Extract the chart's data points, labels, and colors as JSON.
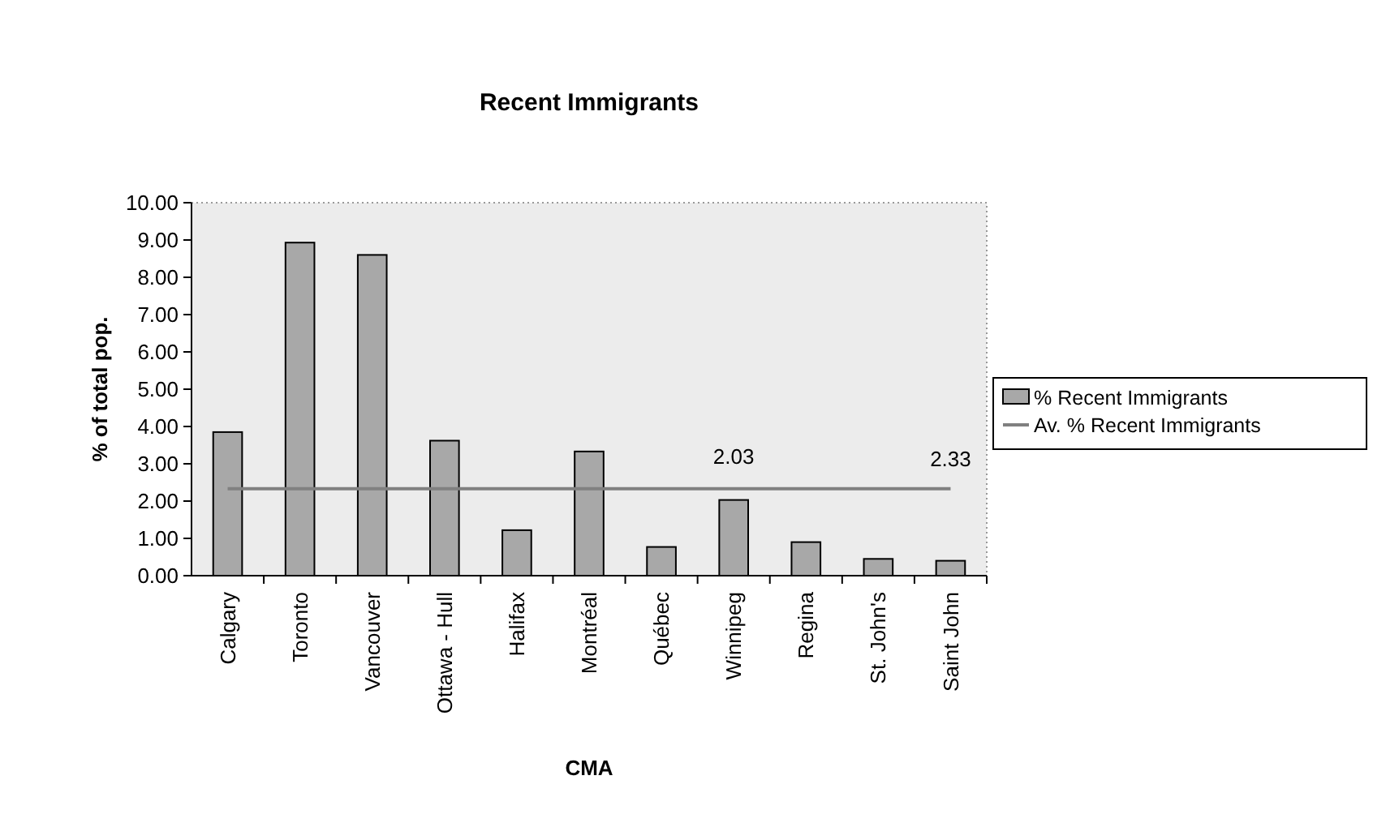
{
  "chart_data": {
    "type": "bar",
    "title": "Recent Immigrants",
    "xlabel": "CMA",
    "ylabel": "% of total pop.",
    "categories": [
      "Calgary",
      "Toronto",
      "Vancouver",
      "Ottawa - Hull",
      "Halifax",
      "Montréal",
      "Québec",
      "Winnipeg",
      "Regina",
      "St. John's",
      "Saint John"
    ],
    "series": [
      {
        "name": "% Recent Immigrants",
        "color": "#a8a8a8",
        "values": [
          3.85,
          8.93,
          8.6,
          3.62,
          1.22,
          3.33,
          0.77,
          2.03,
          0.9,
          0.45,
          0.4
        ],
        "value_labels": [
          null,
          null,
          null,
          null,
          null,
          null,
          null,
          "2.03",
          null,
          null,
          null
        ]
      },
      {
        "name": "Av. % Recent Immigrants",
        "type": "line",
        "color": "#808080",
        "values": [
          2.33,
          2.33,
          2.33,
          2.33,
          2.33,
          2.33,
          2.33,
          2.33,
          2.33,
          2.33,
          2.33
        ],
        "value_labels": [
          null,
          null,
          null,
          null,
          null,
          null,
          null,
          null,
          null,
          null,
          "2.33"
        ]
      }
    ],
    "ylim": [
      0,
      10
    ],
    "yticks": [
      {
        "value": 0,
        "label": "0.00"
      },
      {
        "value": 1,
        "label": "1.00"
      },
      {
        "value": 2,
        "label": "2.00"
      },
      {
        "value": 3,
        "label": "3.00"
      },
      {
        "value": 4,
        "label": "4.00"
      },
      {
        "value": 5,
        "label": "5.00"
      },
      {
        "value": 6,
        "label": "6.00"
      },
      {
        "value": 7,
        "label": "7.00"
      },
      {
        "value": 8,
        "label": "8.00"
      },
      {
        "value": 9,
        "label": "9.00"
      },
      {
        "value": 10,
        "label": "10.00"
      }
    ],
    "legend": "right",
    "marker": "none"
  }
}
